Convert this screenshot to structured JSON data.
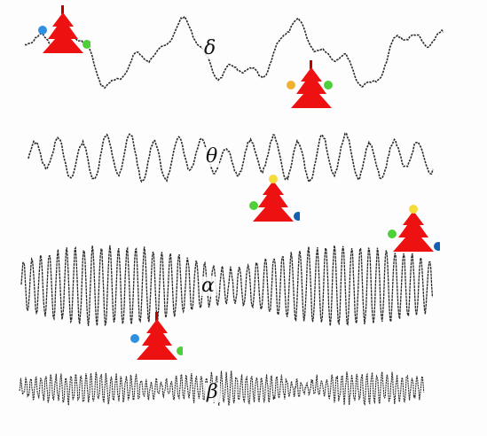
{
  "bands": [
    {
      "key": "delta",
      "label": "δ"
    },
    {
      "key": "theta",
      "label": "θ"
    },
    {
      "key": "alpha",
      "label": "α"
    },
    {
      "key": "beta",
      "label": "β"
    }
  ],
  "colors": {
    "trace": "#2a2a2a",
    "tree": "#ee1111",
    "trunk": "#bb0000",
    "ornament_blue": "#2f8fe0",
    "ornament_green": "#4fcf3a",
    "ornament_yellow": "#f5dc3a",
    "ornament_navy": "#1560b0",
    "ornament_orange": "#f0b030"
  },
  "decorations": [
    {
      "name": "christmas-tree-icon",
      "ornaments": [
        "ornament_blue",
        "ornament_green"
      ]
    },
    {
      "name": "christmas-tree-icon",
      "ornaments": [
        "ornament_orange",
        "ornament_green"
      ]
    },
    {
      "name": "christmas-tree-icon",
      "ornaments": [
        "ornament_yellow",
        "ornament_green",
        "ornament_navy"
      ]
    },
    {
      "name": "christmas-tree-icon",
      "ornaments": [
        "ornament_yellow",
        "ornament_green",
        "ornament_navy"
      ]
    },
    {
      "name": "christmas-tree-icon",
      "ornaments": [
        "ornament_blue",
        "ornament_green"
      ]
    }
  ]
}
